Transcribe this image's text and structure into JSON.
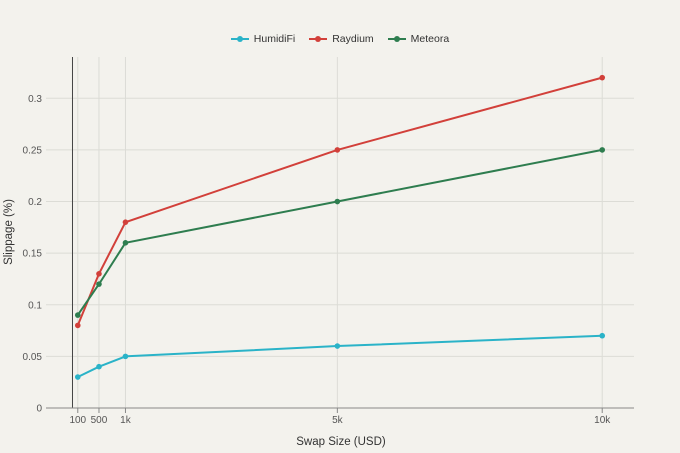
{
  "chart_data": {
    "type": "line",
    "title": "",
    "xlabel": "Swap Size (USD)",
    "ylabel": "Slippage (%)",
    "x": [
      100,
      500,
      1000,
      5000,
      10000
    ],
    "x_tick_values": [
      100,
      500,
      1000,
      5000,
      10000
    ],
    "x_tick_labels": [
      "100",
      "500",
      "1k",
      "5k",
      "10k"
    ],
    "y_tick_values": [
      0,
      0.05,
      0.1,
      0.15,
      0.2,
      0.25,
      0.3
    ],
    "y_tick_labels": [
      "0",
      "0.05",
      "0.1",
      "0.15",
      "0.2",
      "0.25",
      "0.3"
    ],
    "xlim": [
      -500,
      10600
    ],
    "ylim": [
      0,
      0.34
    ],
    "grid": true,
    "legend_position": "top-center",
    "series": [
      {
        "name": "HumidiFi",
        "color": "#2ab3c8",
        "values": [
          0.03,
          0.04,
          0.05,
          0.06,
          0.07
        ]
      },
      {
        "name": "Raydium",
        "color": "#d2403a",
        "values": [
          0.08,
          0.13,
          0.18,
          0.25,
          0.32
        ]
      },
      {
        "name": "Meteora",
        "color": "#2e7d4f",
        "values": [
          0.09,
          0.12,
          0.16,
          0.2,
          0.25
        ]
      }
    ]
  }
}
